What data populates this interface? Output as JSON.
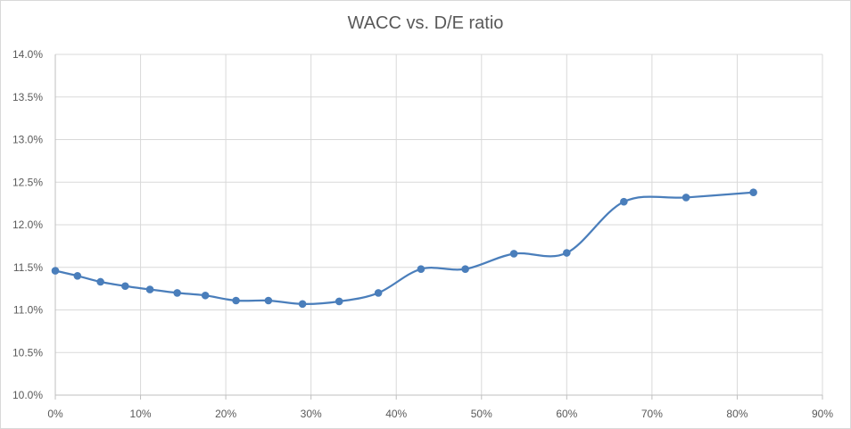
{
  "chart_data": {
    "type": "line",
    "title": "WACC vs. D/E ratio",
    "xlabel": "",
    "ylabel": "",
    "xlim": [
      0,
      90
    ],
    "ylim": [
      10.0,
      14.0
    ],
    "x_ticks": [
      0,
      10,
      20,
      30,
      40,
      50,
      60,
      70,
      80,
      90
    ],
    "x_tick_labels": [
      "0%",
      "10%",
      "20%",
      "30%",
      "40%",
      "50%",
      "60%",
      "70%",
      "80%",
      "90%"
    ],
    "y_ticks": [
      10.0,
      10.5,
      11.0,
      11.5,
      12.0,
      12.5,
      13.0,
      13.5,
      14.0
    ],
    "y_tick_labels": [
      "10.0%",
      "10.5%",
      "11.0%",
      "11.5%",
      "12.0%",
      "12.5%",
      "13.0%",
      "13.5%",
      "14.0%"
    ],
    "grid": true,
    "legend": "none",
    "smooth": true,
    "series": [
      {
        "color": "#4a7ebb",
        "x": [
          0,
          2.6,
          5.3,
          8.2,
          11.1,
          14.3,
          17.6,
          21.2,
          25.0,
          29.0,
          33.3,
          37.9,
          42.9,
          48.1,
          53.8,
          60.0,
          66.7,
          74.0,
          81.9
        ],
        "y": [
          11.46,
          11.4,
          11.33,
          11.28,
          11.24,
          11.2,
          11.17,
          11.11,
          11.11,
          11.07,
          11.1,
          11.2,
          11.48,
          11.48,
          11.66,
          11.67,
          12.27,
          12.32,
          12.38
        ]
      }
    ]
  }
}
